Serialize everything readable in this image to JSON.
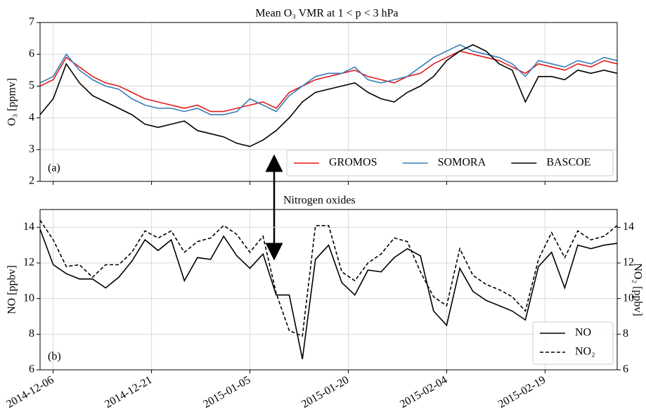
{
  "annotation": "Nitrogen oxides",
  "chart_data": [
    {
      "type": "line",
      "title": "Mean O₃ VMR at 1 < p < 3 hPa",
      "ylabel": "O₃ [ppmv]",
      "panel_label": "(a)",
      "xlim": [
        "2014-12-04",
        "2015-03-02"
      ],
      "ylim": [
        2,
        7
      ],
      "yticks": [
        2,
        3,
        4,
        5,
        6,
        7
      ],
      "grid": true,
      "legend": "lower right",
      "x": [
        "2014-12-04",
        "2014-12-06",
        "2014-12-08",
        "2014-12-10",
        "2014-12-12",
        "2014-12-14",
        "2014-12-16",
        "2014-12-18",
        "2014-12-20",
        "2014-12-22",
        "2014-12-24",
        "2014-12-26",
        "2014-12-28",
        "2014-12-30",
        "2015-01-01",
        "2015-01-03",
        "2015-01-05",
        "2015-01-07",
        "2015-01-09",
        "2015-01-11",
        "2015-01-13",
        "2015-01-15",
        "2015-01-17",
        "2015-01-19",
        "2015-01-21",
        "2015-01-23",
        "2015-01-25",
        "2015-01-27",
        "2015-01-29",
        "2015-01-31",
        "2015-02-02",
        "2015-02-04",
        "2015-02-06",
        "2015-02-08",
        "2015-02-10",
        "2015-02-12",
        "2015-02-14",
        "2015-02-16",
        "2015-02-18",
        "2015-02-20",
        "2015-02-22",
        "2015-02-24",
        "2015-02-26",
        "2015-02-28",
        "2015-03-02"
      ],
      "series": [
        {
          "name": "GROMOS",
          "color": "#e41a1c",
          "values": [
            5.0,
            5.2,
            5.9,
            5.6,
            5.3,
            5.1,
            5.0,
            4.8,
            4.6,
            4.5,
            4.4,
            4.3,
            4.4,
            4.2,
            4.2,
            4.3,
            4.4,
            4.5,
            4.3,
            4.8,
            5.0,
            5.2,
            5.3,
            5.4,
            5.5,
            5.3,
            5.2,
            5.1,
            5.3,
            5.4,
            5.7,
            5.9,
            6.1,
            6.0,
            5.9,
            5.8,
            5.6,
            5.4,
            5.7,
            5.6,
            5.5,
            5.7,
            5.6,
            5.8,
            5.7
          ]
        },
        {
          "name": "SOMORA",
          "color": "#377eb8",
          "values": [
            5.1,
            5.3,
            6.0,
            5.5,
            5.2,
            5.0,
            4.9,
            4.6,
            4.4,
            4.3,
            4.3,
            4.2,
            4.3,
            4.1,
            4.1,
            4.2,
            4.6,
            4.4,
            4.2,
            4.7,
            5.0,
            5.3,
            5.4,
            5.4,
            5.6,
            5.2,
            5.1,
            5.2,
            5.3,
            5.6,
            5.9,
            6.1,
            6.3,
            6.1,
            6.0,
            5.9,
            5.7,
            5.3,
            5.8,
            5.7,
            5.6,
            5.8,
            5.7,
            5.9,
            5.8
          ]
        },
        {
          "name": "BASCOE",
          "color": "#000000",
          "values": [
            4.1,
            4.6,
            5.7,
            5.1,
            4.7,
            4.5,
            4.3,
            4.1,
            3.8,
            3.7,
            3.8,
            3.9,
            3.6,
            3.5,
            3.4,
            3.2,
            3.1,
            3.3,
            3.6,
            4.0,
            4.5,
            4.8,
            4.9,
            5.0,
            5.1,
            4.8,
            4.6,
            4.5,
            4.8,
            5.0,
            5.3,
            5.8,
            6.1,
            6.3,
            6.1,
            5.7,
            5.5,
            4.5,
            5.3,
            5.3,
            5.2,
            5.5,
            5.4,
            5.5,
            5.4
          ]
        }
      ]
    },
    {
      "type": "line",
      "ylabel": "NO [ppbv]",
      "y2label": "NO₂ [ppbv]",
      "panel_label": "(b)",
      "xlim": [
        "2014-12-04",
        "2015-03-02"
      ],
      "xticks": [
        "2014-12-06",
        "2014-12-21",
        "2015-01-05",
        "2015-01-20",
        "2015-02-04",
        "2015-02-19"
      ],
      "ylim": [
        6,
        15
      ],
      "yticks": [
        6,
        8,
        10,
        12,
        14
      ],
      "y2lim": [
        6,
        15
      ],
      "y2ticks": [
        6,
        8,
        10,
        12,
        14
      ],
      "grid": true,
      "legend": "lower right",
      "x": [
        "2014-12-04",
        "2014-12-06",
        "2014-12-08",
        "2014-12-10",
        "2014-12-12",
        "2014-12-14",
        "2014-12-16",
        "2014-12-18",
        "2014-12-20",
        "2014-12-22",
        "2014-12-24",
        "2014-12-26",
        "2014-12-28",
        "2014-12-30",
        "2015-01-01",
        "2015-01-03",
        "2015-01-05",
        "2015-01-07",
        "2015-01-09",
        "2015-01-11",
        "2015-01-13",
        "2015-01-15",
        "2015-01-17",
        "2015-01-19",
        "2015-01-21",
        "2015-01-23",
        "2015-01-25",
        "2015-01-27",
        "2015-01-29",
        "2015-01-31",
        "2015-02-02",
        "2015-02-04",
        "2015-02-06",
        "2015-02-08",
        "2015-02-10",
        "2015-02-12",
        "2015-02-14",
        "2015-02-16",
        "2015-02-18",
        "2015-02-20",
        "2015-02-22",
        "2015-02-24",
        "2015-02-26",
        "2015-02-28",
        "2015-03-02"
      ],
      "series": [
        {
          "name": "NO",
          "color": "#000000",
          "dashed": false,
          "values": [
            13.9,
            11.9,
            11.4,
            11.1,
            11.1,
            10.6,
            11.2,
            12.1,
            13.3,
            12.7,
            13.3,
            11.0,
            12.3,
            12.2,
            13.5,
            12.4,
            11.7,
            12.5,
            10.2,
            10.2,
            6.6,
            12.2,
            13.0,
            10.9,
            10.2,
            11.6,
            11.5,
            12.3,
            12.8,
            12.4,
            9.3,
            8.5,
            11.7,
            10.4,
            9.9,
            9.6,
            9.3,
            8.8,
            11.8,
            12.6,
            10.6,
            13.0,
            12.8,
            13.0,
            13.1
          ]
        },
        {
          "name": "NO₂",
          "color": "#000000",
          "dashed": true,
          "axis": "y2",
          "values": [
            14.4,
            13.3,
            11.8,
            11.9,
            11.2,
            11.9,
            11.9,
            12.6,
            13.8,
            13.4,
            13.8,
            12.6,
            13.2,
            13.4,
            14.1,
            13.6,
            12.6,
            13.5,
            10.3,
            8.2,
            7.9,
            14.1,
            14.1,
            11.5,
            11.0,
            12.0,
            12.5,
            13.4,
            13.2,
            11.5,
            10.1,
            9.6,
            12.8,
            11.3,
            10.8,
            10.5,
            10.1,
            9.3,
            12.2,
            13.7,
            12.3,
            13.8,
            13.3,
            13.5,
            14.1
          ]
        }
      ]
    }
  ]
}
